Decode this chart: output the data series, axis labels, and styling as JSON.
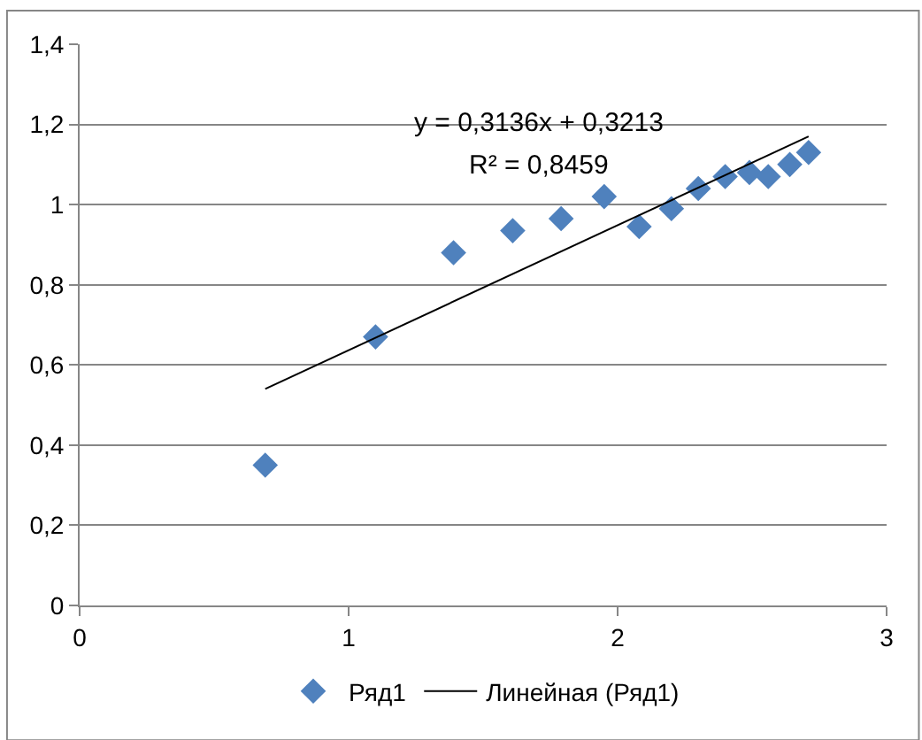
{
  "chart_data": {
    "type": "scatter",
    "grid": "y",
    "legend": "bottom",
    "xlim": [
      0,
      3
    ],
    "xticks": [
      0,
      1,
      2,
      3
    ],
    "ylim": [
      0,
      1.4
    ],
    "yticks": [
      0,
      {
        "value": 0.2,
        "label": "0,2"
      },
      {
        "value": 0.4,
        "label": "0,4"
      },
      {
        "value": 0.6,
        "label": "0,6"
      },
      {
        "value": 0.8,
        "label": "0,8"
      },
      1,
      {
        "value": 1.2,
        "label": "1,2"
      },
      {
        "value": 1.4,
        "label": "1,4"
      }
    ],
    "annotations": [
      "y = 0,3136x + 0,3213",
      "R² = 0,8459"
    ],
    "series": [
      {
        "name": "Ряд1",
        "marker": "diamond",
        "color": "#4f81bd",
        "x": [
          0.69,
          1.1,
          1.39,
          1.61,
          1.79,
          1.95,
          2.08,
          2.2,
          2.3,
          2.4,
          2.49,
          2.56,
          2.64,
          2.71
        ],
        "values": [
          0.35,
          0.67,
          0.88,
          0.935,
          0.965,
          1.02,
          0.945,
          0.99,
          1.04,
          1.07,
          1.08,
          1.07,
          1.1,
          1.13
        ]
      },
      {
        "name": "Линейная (Ряд1)",
        "type": "line",
        "marker": "none",
        "color": "#000000",
        "x": [
          0.69,
          2.71
        ],
        "values": [
          0.54,
          1.17
        ]
      }
    ]
  }
}
